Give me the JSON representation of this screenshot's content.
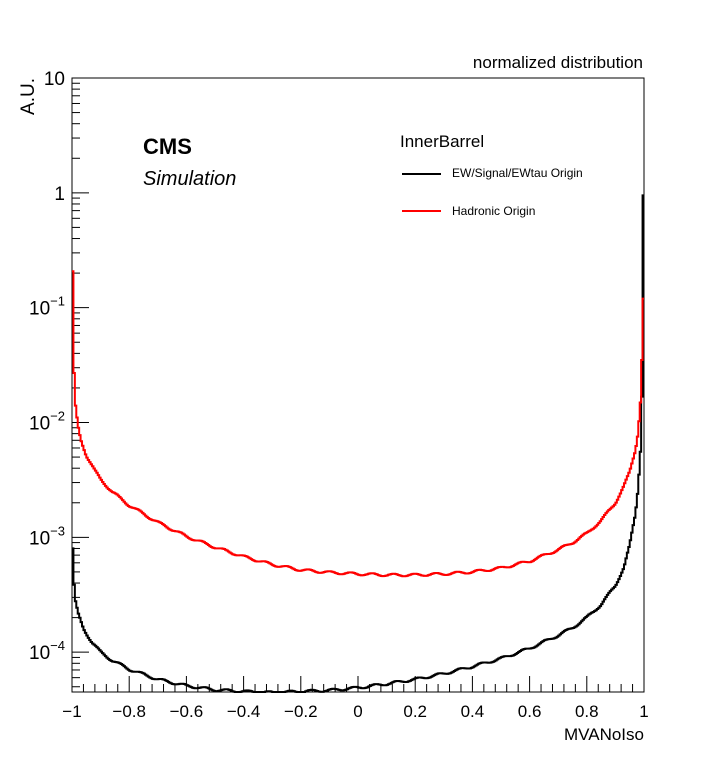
{
  "chart_data": {
    "type": "histogram",
    "title": "normalized distribution",
    "xlabel": "MVANoIso",
    "ylabel": "A.U.",
    "yscale": "log",
    "xlim": [
      -1,
      1
    ],
    "ylim": [
      4.5e-05,
      10
    ],
    "x_ticks": [
      "−1",
      "−0.8",
      "−0.6",
      "−0.4",
      "−0.2",
      "0",
      "0.2",
      "0.4",
      "0.6",
      "0.8",
      "1"
    ],
    "x_tick_values": [
      -1,
      -0.8,
      -0.6,
      -0.4,
      -0.2,
      0,
      0.2,
      0.4,
      0.6,
      0.8,
      1
    ],
    "y_ticks": [
      {
        "value": 10,
        "base": "10",
        "exp": ""
      },
      {
        "value": 1,
        "base": "1",
        "exp": ""
      },
      {
        "value": 0.1,
        "base": "10",
        "exp": "−1"
      },
      {
        "value": 0.01,
        "base": "10",
        "exp": "−2"
      },
      {
        "value": 0.001,
        "base": "10",
        "exp": "−3"
      },
      {
        "value": 0.0001,
        "base": "10",
        "exp": "−4"
      }
    ],
    "annotations": {
      "experiment": "CMS",
      "status": "Simulation",
      "region": "InnerBarrel"
    },
    "series": [
      {
        "name": "EW/Signal/EWtau Origin",
        "color": "#000000",
        "points": [
          [
            -1.0,
            0.0015
          ],
          [
            -0.996,
            0.00055
          ],
          [
            -0.99,
            0.0003
          ],
          [
            -0.98,
            0.00022
          ],
          [
            -0.96,
            0.00016
          ],
          [
            -0.93,
            0.000122
          ],
          [
            -0.9,
            0.0001
          ],
          [
            -0.86,
            8.5e-05
          ],
          [
            -0.8,
            7.1e-05
          ],
          [
            -0.7,
            5.8e-05
          ],
          [
            -0.6,
            5.1e-05
          ],
          [
            -0.5,
            4.7e-05
          ],
          [
            -0.4,
            4.55e-05
          ],
          [
            -0.3,
            4.45e-05
          ],
          [
            -0.2,
            4.55e-05
          ],
          [
            -0.1,
            4.65e-05
          ],
          [
            0.0,
            4.9e-05
          ],
          [
            0.1,
            5.3e-05
          ],
          [
            0.2,
            5.8e-05
          ],
          [
            0.3,
            6.5e-05
          ],
          [
            0.4,
            7.5e-05
          ],
          [
            0.5,
            8.8e-05
          ],
          [
            0.6,
            0.000108
          ],
          [
            0.7,
            0.00014
          ],
          [
            0.75,
            0.000163
          ],
          [
            0.8,
            0.0002
          ],
          [
            0.85,
            0.00026
          ],
          [
            0.9,
            0.00038
          ],
          [
            0.93,
            0.00055
          ],
          [
            0.95,
            0.00085
          ],
          [
            0.97,
            0.0016
          ],
          [
            0.98,
            0.0028
          ],
          [
            0.99,
            0.007
          ],
          [
            0.993,
            0.02
          ],
          [
            0.996,
            0.95
          ]
        ]
      },
      {
        "name": "Hadronic Origin",
        "color": "#ff0000",
        "points": [
          [
            -1.0,
            0.6
          ],
          [
            -0.996,
            0.11
          ],
          [
            -0.993,
            0.03
          ],
          [
            -0.99,
            0.016
          ],
          [
            -0.98,
            0.0095
          ],
          [
            -0.97,
            0.0072
          ],
          [
            -0.95,
            0.0052
          ],
          [
            -0.92,
            0.0038
          ],
          [
            -0.9,
            0.0032
          ],
          [
            -0.86,
            0.0025
          ],
          [
            -0.8,
            0.0019
          ],
          [
            -0.7,
            0.00135
          ],
          [
            -0.6,
            0.00102
          ],
          [
            -0.5,
            0.00082
          ],
          [
            -0.4,
            0.00068
          ],
          [
            -0.3,
            0.00058
          ],
          [
            -0.2,
            0.00052
          ],
          [
            -0.1,
            0.000495
          ],
          [
            0.0,
            0.00048
          ],
          [
            0.1,
            0.00047
          ],
          [
            0.2,
            0.00047
          ],
          [
            0.3,
            0.00048
          ],
          [
            0.4,
            0.0005
          ],
          [
            0.5,
            0.00054
          ],
          [
            0.6,
            0.00062
          ],
          [
            0.7,
            0.00078
          ],
          [
            0.75,
            0.0009
          ],
          [
            0.8,
            0.00108
          ],
          [
            0.85,
            0.0014
          ],
          [
            0.9,
            0.002
          ],
          [
            0.93,
            0.0028
          ],
          [
            0.95,
            0.0037
          ],
          [
            0.97,
            0.0058
          ],
          [
            0.98,
            0.0085
          ],
          [
            0.99,
            0.018
          ],
          [
            0.993,
            0.04
          ],
          [
            0.996,
            0.12
          ]
        ]
      }
    ]
  }
}
